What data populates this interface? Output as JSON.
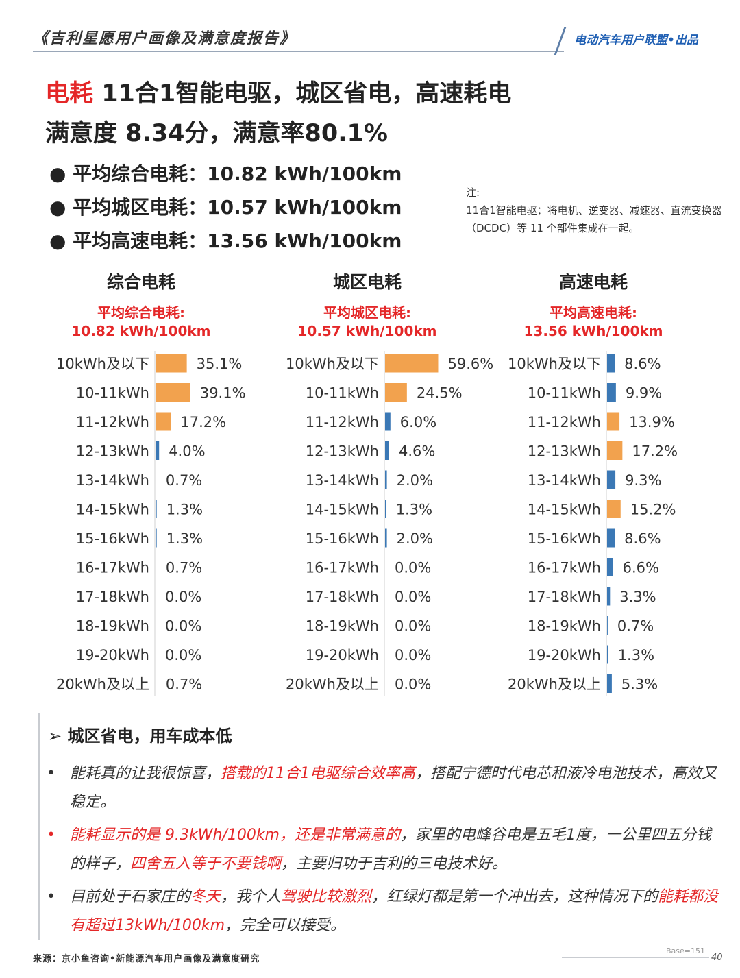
{
  "header": {
    "report_title": "《吉利星愿用户画像及满意度报告》",
    "brand": "电动汽车用户联盟•出品"
  },
  "headline": {
    "line1_red": "电耗",
    "line1_rest": " 11合1智能电驱，城区省电，高速耗电",
    "line2": "满意度 8.34分，满意率80.1%"
  },
  "averages": [
    "● 平均综合电耗：10.82 kWh/100km",
    "● 平均城区电耗：10.57 kWh/100km",
    "● 平均高速电耗：13.56 kWh/100km"
  ],
  "note": {
    "label": "注:",
    "text": "11合1智能电驱：将电机、逆变器、减速器、直流变换器（DCDC）等 11 个部件集成在一起。"
  },
  "colors": {
    "orange": "#f2a24e",
    "blue": "#3b78b5",
    "red": "#e42728"
  },
  "chart_data": [
    {
      "type": "bar",
      "orientation": "horizontal",
      "title": "综合电耗",
      "subtitle_line1": "平均综合电耗:",
      "subtitle_line2": "10.82 kWh/100km",
      "categories": [
        "10kWh及以下",
        "10-11kWh",
        "11-12kWh",
        "12-13kWh",
        "13-14kWh",
        "14-15kWh",
        "15-16kWh",
        "16-17kWh",
        "17-18kWh",
        "18-19kWh",
        "19-20kWh",
        "20kWh及以上"
      ],
      "values": [
        35.1,
        39.1,
        17.2,
        4.0,
        0.7,
        1.3,
        1.3,
        0.7,
        0.0,
        0.0,
        0.0,
        0.7
      ],
      "labels": [
        "35.1%",
        "39.1%",
        "17.2%",
        "4.0%",
        "0.7%",
        "1.3%",
        "1.3%",
        "0.7%",
        "0.0%",
        "0.0%",
        "0.0%",
        "0.7%"
      ],
      "highlight": [
        true,
        true,
        true,
        false,
        false,
        false,
        false,
        false,
        false,
        false,
        false,
        false
      ]
    },
    {
      "type": "bar",
      "orientation": "horizontal",
      "title": "城区电耗",
      "subtitle_line1": "平均城区电耗:",
      "subtitle_line2": "10.57 kWh/100km",
      "categories": [
        "10kWh及以下",
        "10-11kWh",
        "11-12kWh",
        "12-13kWh",
        "13-14kWh",
        "14-15kWh",
        "15-16kWh",
        "16-17kWh",
        "17-18kWh",
        "18-19kWh",
        "19-20kWh",
        "20kWh及以上"
      ],
      "values": [
        59.6,
        24.5,
        6.0,
        4.6,
        2.0,
        1.3,
        2.0,
        0.0,
        0.0,
        0.0,
        0.0,
        0.0
      ],
      "labels": [
        "59.6%",
        "24.5%",
        "6.0%",
        "4.6%",
        "2.0%",
        "1.3%",
        "2.0%",
        "0.0%",
        "0.0%",
        "0.0%",
        "0.0%",
        "0.0%"
      ],
      "highlight": [
        true,
        true,
        false,
        false,
        false,
        false,
        false,
        false,
        false,
        false,
        false,
        false
      ]
    },
    {
      "type": "bar",
      "orientation": "horizontal",
      "title": "高速电耗",
      "subtitle_line1": "平均高速电耗:",
      "subtitle_line2": "13.56 kWh/100km",
      "categories": [
        "10kWh及以下",
        "10-11kWh",
        "11-12kWh",
        "12-13kWh",
        "13-14kWh",
        "14-15kWh",
        "15-16kWh",
        "16-17kWh",
        "17-18kWh",
        "18-19kWh",
        "19-20kWh",
        "20kWh及以上"
      ],
      "values": [
        8.6,
        9.9,
        13.9,
        17.2,
        9.3,
        15.2,
        8.6,
        6.6,
        3.3,
        0.7,
        1.3,
        5.3
      ],
      "labels": [
        "8.6%",
        "9.9%",
        "13.9%",
        "17.2%",
        "9.3%",
        "15.2%",
        "8.6%",
        "6.6%",
        "3.3%",
        "0.7%",
        "1.3%",
        "5.3%"
      ],
      "highlight": [
        false,
        false,
        true,
        true,
        false,
        true,
        false,
        false,
        false,
        false,
        false,
        false
      ]
    }
  ],
  "section": {
    "title": "➢  城区省电，用车成本低",
    "quotes": [
      {
        "bullet": "•",
        "bullet_red": false,
        "parts": [
          {
            "t": "能耗真的让我很惊喜，",
            "red": false
          },
          {
            "t": "搭载的11合1电驱综合效率高",
            "red": true
          },
          {
            "t": "，搭配宁德时代电芯和液冷电池技术，高效又稳定。",
            "red": false
          }
        ]
      },
      {
        "bullet": "•",
        "bullet_red": true,
        "parts": [
          {
            "t": "能耗显示的是 9.3kWh/100km，还是非常满意的",
            "red": true
          },
          {
            "t": "，家里的电峰谷电是五毛1度，一公里四五分钱的样子，",
            "red": false
          },
          {
            "t": "四舍五入等于不要钱啊",
            "red": true
          },
          {
            "t": "，主要归功于吉利的三电技术好。",
            "red": false
          }
        ]
      },
      {
        "bullet": "•",
        "bullet_red": false,
        "parts": [
          {
            "t": "目前处于石家庄的",
            "red": false
          },
          {
            "t": "冬天",
            "red": true
          },
          {
            "t": "，我个人",
            "red": false
          },
          {
            "t": "驾驶比较激烈",
            "red": true
          },
          {
            "t": "，红绿灯都是第一个冲出去，这种情况下的",
            "red": false
          },
          {
            "t": "能耗都没有超过13kWh/100km",
            "red": true
          },
          {
            "t": "，完全可以接受。",
            "red": false
          }
        ]
      }
    ]
  },
  "footer": {
    "source": "来源：京小鱼咨询•新能源汽车用户画像及满意度研究",
    "base": "Base=151",
    "page": "40"
  }
}
